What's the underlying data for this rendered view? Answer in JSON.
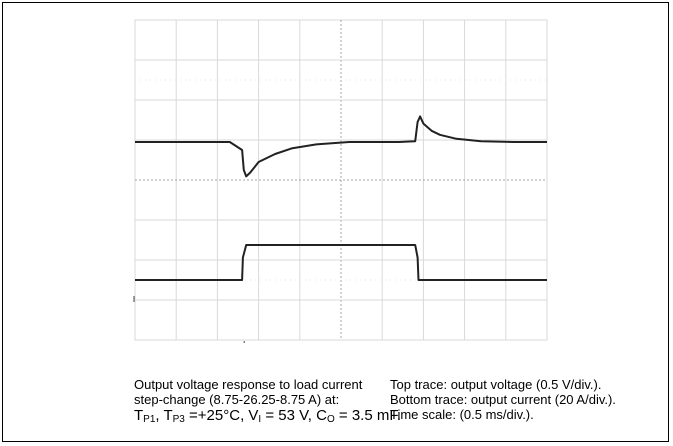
{
  "chart_data": {
    "type": "line",
    "title": "",
    "xlabel": "",
    "ylabel": "",
    "grid": true,
    "grid_divisions": {
      "x": 10,
      "y": 8
    },
    "x_unit": "ms",
    "x_per_div": 0.5,
    "xlim": [
      0,
      5
    ],
    "series": [
      {
        "name": "Top trace: output voltage",
        "y_per_div": 0.5,
        "y_unit": "V",
        "x": [
          0,
          1.15,
          1.3,
          1.32,
          1.35,
          1.4,
          1.5,
          1.7,
          1.9,
          2.2,
          2.6,
          3.0,
          3.2,
          3.4,
          3.43,
          3.46,
          3.5,
          3.6,
          3.7,
          3.9,
          4.2,
          4.6,
          5.0
        ],
        "y": [
          5.43,
          5.43,
          5.33,
          5.08,
          5.0,
          5.05,
          5.18,
          5.28,
          5.35,
          5.4,
          5.43,
          5.43,
          5.43,
          5.44,
          5.68,
          5.75,
          5.66,
          5.57,
          5.52,
          5.47,
          5.44,
          5.43,
          5.43
        ]
      },
      {
        "name": "Bottom trace: output current",
        "y_per_div": 20,
        "y_unit": "A",
        "x": [
          0,
          1.3,
          1.31,
          1.35,
          3.4,
          3.43,
          3.44,
          5.0
        ],
        "y": [
          8.75,
          8.75,
          20,
          26.25,
          26.25,
          20,
          8.75,
          8.75
        ]
      }
    ]
  },
  "caption": {
    "left_line1": "Output voltage response to load current",
    "left_line2": "step-change (8.75-26.25-8.75 A) at:",
    "cond_T": "T",
    "cond_P1": "P1",
    "cond_sep": ", T",
    "cond_P3": "P3",
    "cond_temp": " =+25°C, V",
    "cond_I": "I",
    "cond_volt": " = 53 V, C",
    "cond_O": "O",
    "cond_cap": " = 3.5 mF.",
    "right_line1": "Top trace: output voltage (0.5 V/div.).",
    "right_line2": "Bottom trace: output current (20 A/div.).",
    "right_line3": "Time scale: (0.5 ms/div.)."
  }
}
